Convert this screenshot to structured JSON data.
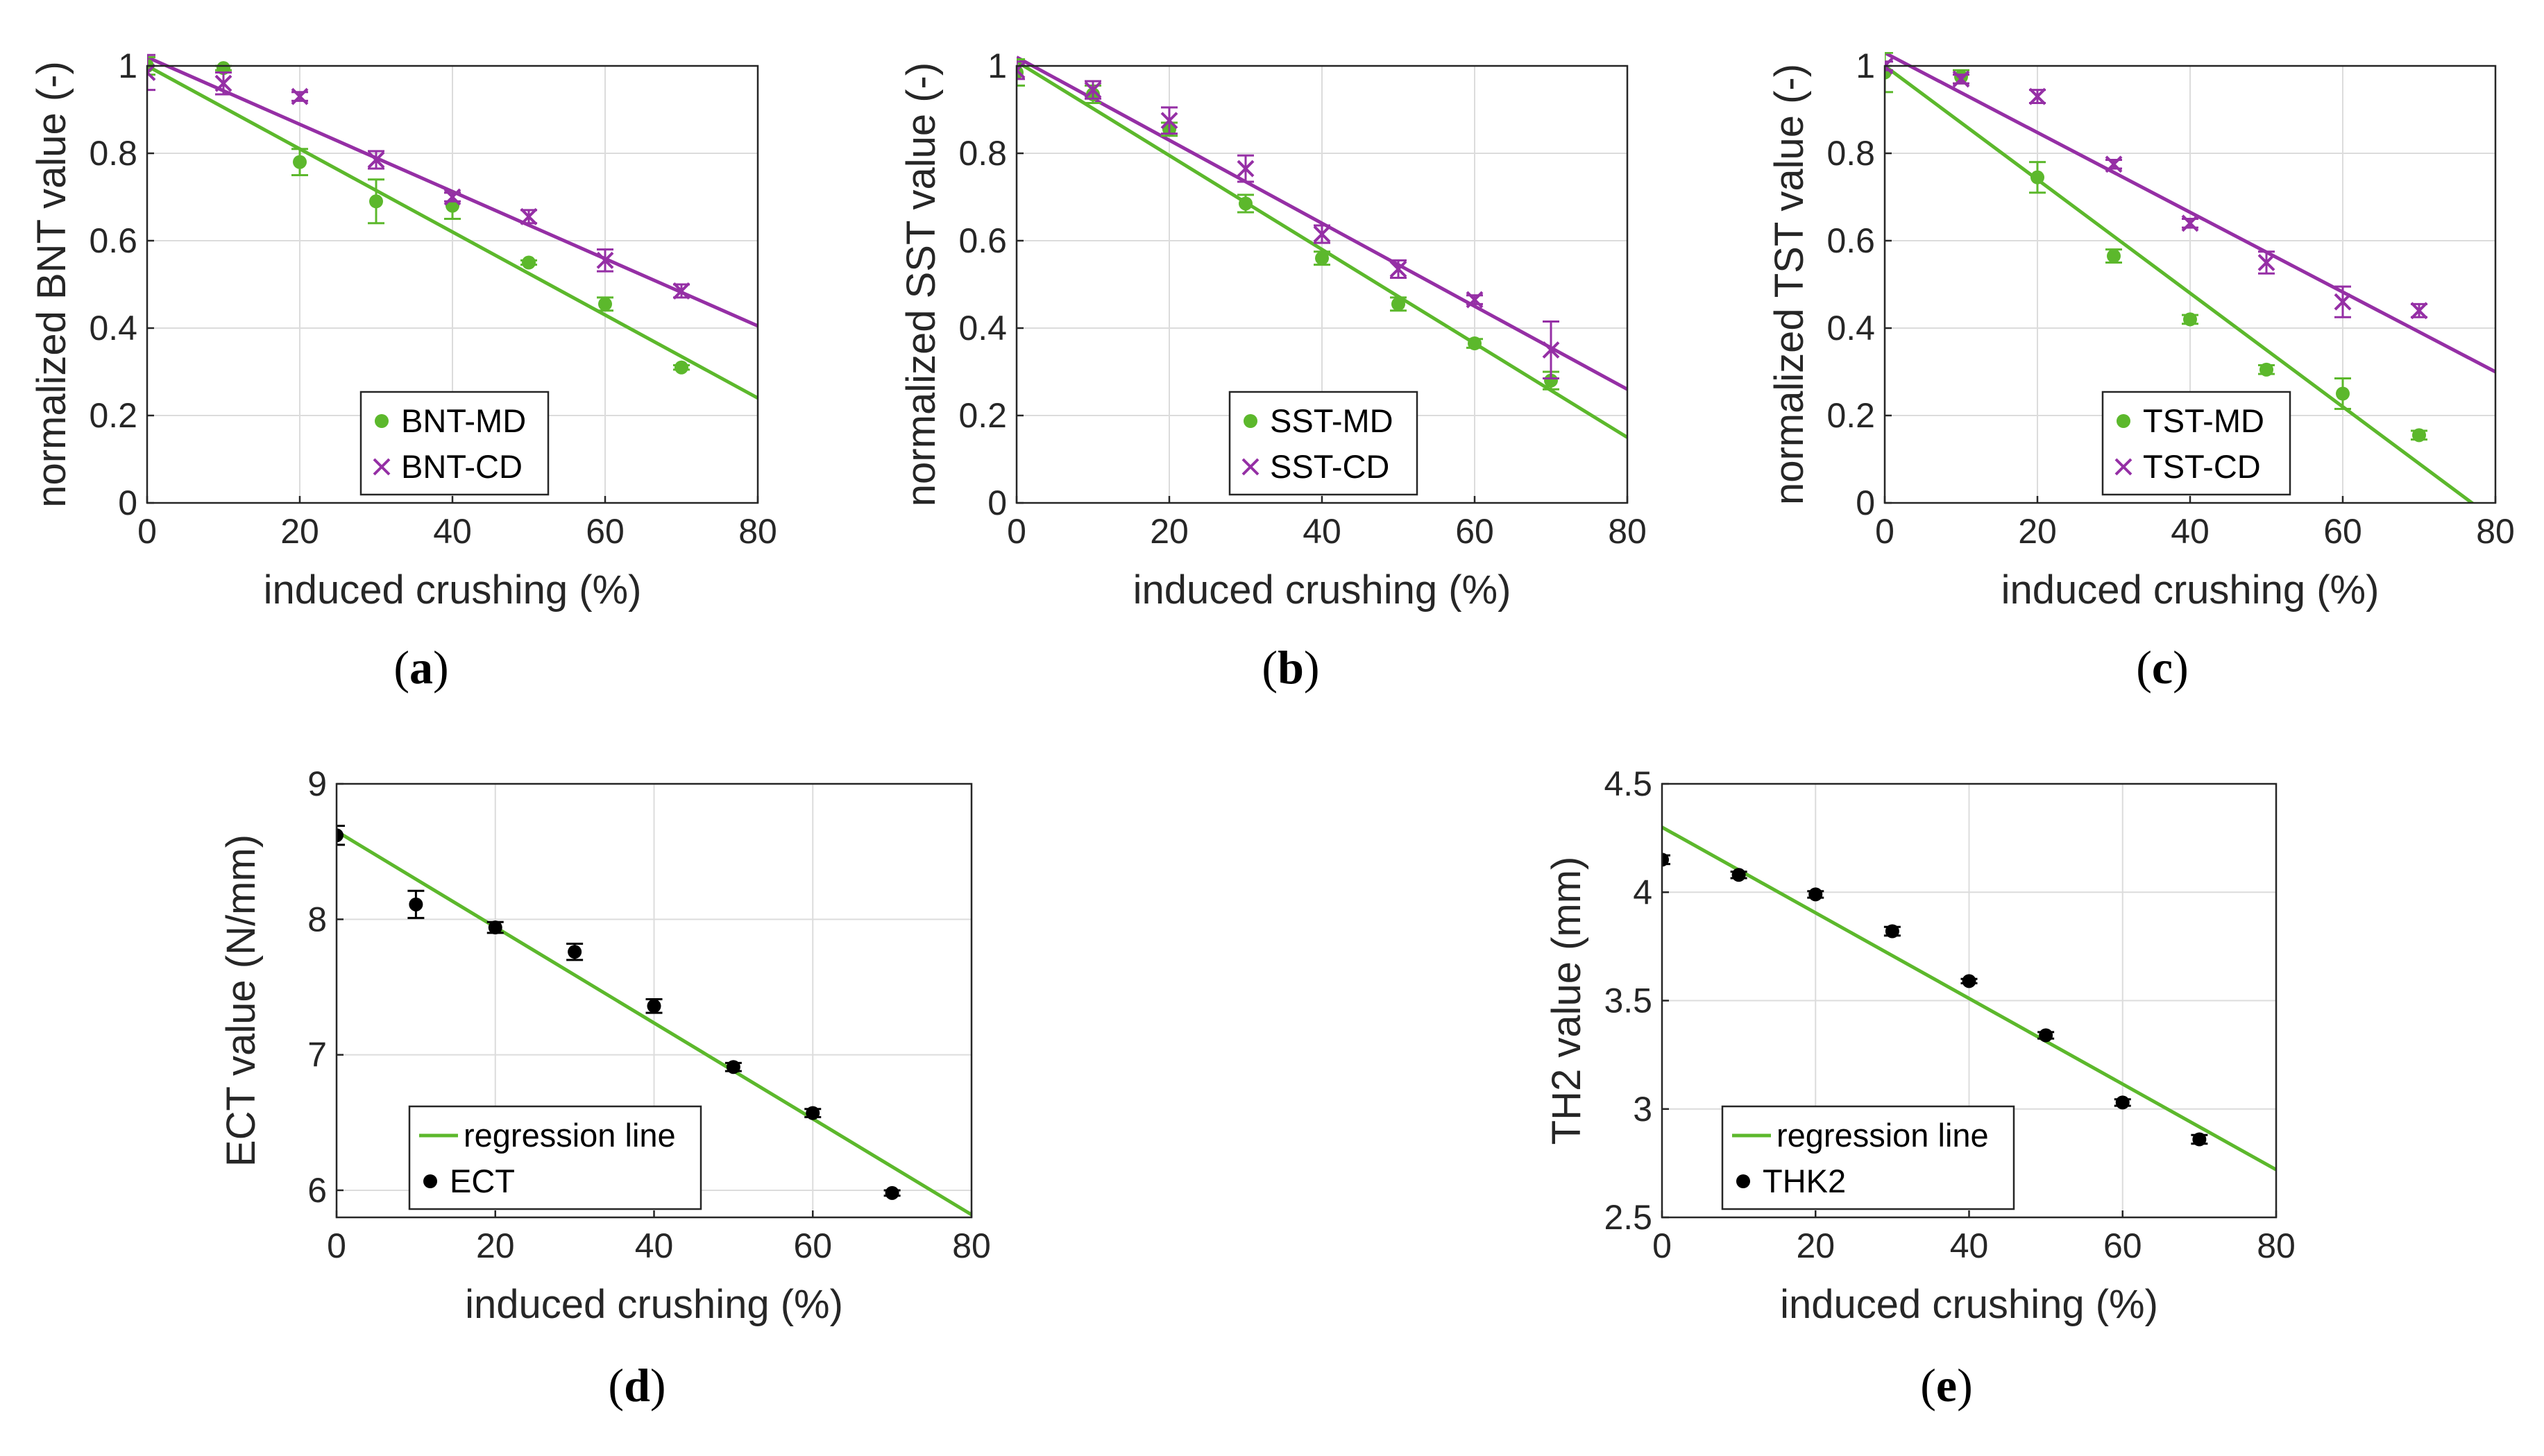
{
  "colors": {
    "md": "#5cb82c",
    "cd": "#952fa5",
    "black": "#000000",
    "regression": "#5cb82c"
  },
  "chart_data": [
    {
      "type": "scatter",
      "id": "a",
      "caption": "a",
      "xlabel": "induced crushing (%)",
      "ylabel": "normalized BNT value (-)",
      "xlim": [
        0,
        80
      ],
      "ylim": [
        0,
        1
      ],
      "xticks": [
        0,
        20,
        40,
        60,
        80
      ],
      "yticks": [
        0,
        0.2,
        0.4,
        0.6,
        0.8,
        1
      ],
      "ytick_labels": [
        "0",
        "0.2",
        "0.4",
        "0.6",
        "0.8",
        "1"
      ],
      "legend": [
        {
          "label": "BNT-MD",
          "marker": "dot",
          "color": "md"
        },
        {
          "label": "BNT-CD",
          "marker": "x",
          "color": "cd"
        }
      ],
      "series": [
        {
          "name": "BNT-MD",
          "marker": "dot",
          "color": "md",
          "x": [
            0,
            10,
            20,
            30,
            40,
            50,
            60,
            70
          ],
          "y": [
            1.0,
            0.995,
            0.78,
            0.69,
            0.68,
            0.55,
            0.455,
            0.31
          ],
          "err": [
            0.02,
            0.005,
            0.03,
            0.05,
            0.03,
            0.005,
            0.015,
            0.005
          ],
          "fit": [
            1.0,
            0.24
          ]
        },
        {
          "name": "BNT-CD",
          "marker": "x",
          "color": "cd",
          "x": [
            0,
            10,
            20,
            30,
            40,
            50,
            60,
            70
          ],
          "y": [
            0.985,
            0.96,
            0.93,
            0.785,
            0.7,
            0.655,
            0.555,
            0.485
          ],
          "err": [
            0.04,
            0.025,
            0.01,
            0.02,
            0.01,
            0.015,
            0.025,
            0.015
          ],
          "fit": [
            1.02,
            0.405
          ]
        }
      ]
    },
    {
      "type": "scatter",
      "id": "b",
      "caption": "b",
      "xlabel": "induced crushing (%)",
      "ylabel": "normalized SST value (-)",
      "xlim": [
        0,
        80
      ],
      "ylim": [
        0,
        1
      ],
      "xticks": [
        0,
        20,
        40,
        60,
        80
      ],
      "yticks": [
        0,
        0.2,
        0.4,
        0.6,
        0.8,
        1
      ],
      "ytick_labels": [
        "0",
        "0.2",
        "0.4",
        "0.6",
        "0.8",
        "1"
      ],
      "legend": [
        {
          "label": "SST-MD",
          "marker": "dot",
          "color": "md"
        },
        {
          "label": "SST-CD",
          "marker": "x",
          "color": "cd"
        }
      ],
      "series": [
        {
          "name": "SST-MD",
          "marker": "dot",
          "color": "md",
          "x": [
            0,
            10,
            20,
            30,
            40,
            50,
            60,
            70
          ],
          "y": [
            0.985,
            0.935,
            0.855,
            0.685,
            0.56,
            0.455,
            0.365,
            0.28
          ],
          "err": [
            0.03,
            0.02,
            0.015,
            0.02,
            0.015,
            0.015,
            0.01,
            0.02
          ],
          "fit": [
            1.01,
            0.15
          ]
        },
        {
          "name": "SST-CD",
          "marker": "x",
          "color": "cd",
          "x": [
            0,
            10,
            20,
            30,
            40,
            50,
            60,
            70
          ],
          "y": [
            0.99,
            0.945,
            0.875,
            0.765,
            0.615,
            0.535,
            0.465,
            0.35
          ],
          "err": [
            0.02,
            0.02,
            0.03,
            0.03,
            0.02,
            0.02,
            0.01,
            0.065
          ],
          "fit": [
            1.02,
            0.26
          ]
        }
      ]
    },
    {
      "type": "scatter",
      "id": "c",
      "caption": "c",
      "xlabel": "induced crushing (%)",
      "ylabel": "normalized TST value (-)",
      "xlim": [
        0,
        80
      ],
      "ylim": [
        0,
        1
      ],
      "xticks": [
        0,
        20,
        40,
        60,
        80
      ],
      "yticks": [
        0,
        0.2,
        0.4,
        0.6,
        0.8,
        1
      ],
      "ytick_labels": [
        "0",
        "0.2",
        "0.4",
        "0.6",
        "0.8",
        "1"
      ],
      "legend": [
        {
          "label": "TST-MD",
          "marker": "dot",
          "color": "md"
        },
        {
          "label": "TST-CD",
          "marker": "x",
          "color": "cd"
        }
      ],
      "series": [
        {
          "name": "TST-MD",
          "marker": "dot",
          "color": "md",
          "x": [
            0,
            10,
            20,
            30,
            40,
            50,
            60,
            70
          ],
          "y": [
            0.985,
            0.975,
            0.745,
            0.565,
            0.42,
            0.305,
            0.25,
            0.155
          ],
          "err": [
            0.045,
            0.015,
            0.035,
            0.015,
            0.01,
            0.01,
            0.035,
            0.01
          ],
          "fit": [
            1.0,
            -0.04
          ]
        },
        {
          "name": "TST-CD",
          "marker": "x",
          "color": "cd",
          "x": [
            0,
            10,
            20,
            30,
            40,
            50,
            60,
            70
          ],
          "y": [
            1.0,
            0.97,
            0.93,
            0.775,
            0.64,
            0.55,
            0.46,
            0.44
          ],
          "err": [
            0.01,
            0.01,
            0.015,
            0.01,
            0.01,
            0.025,
            0.035,
            0.015
          ],
          "fit": [
            1.03,
            0.3
          ]
        }
      ]
    },
    {
      "type": "scatter",
      "id": "d",
      "caption": "d",
      "xlabel": "induced crushing (%)",
      "ylabel": "ECT value (N/mm)",
      "xlim": [
        0,
        80
      ],
      "ylim": [
        5.8,
        9
      ],
      "xticks": [
        0,
        20,
        40,
        60,
        80
      ],
      "yticks": [
        6,
        7,
        8,
        9
      ],
      "ytick_labels": [
        "6",
        "7",
        "8",
        "9"
      ],
      "legend": [
        {
          "label": "regression line",
          "marker": "line",
          "color": "regression"
        },
        {
          "label": "ECT",
          "marker": "dot",
          "color": "black"
        }
      ],
      "series": [
        {
          "name": "ECT",
          "marker": "dot",
          "color": "black",
          "x": [
            0,
            10,
            20,
            30,
            40,
            50,
            60,
            70
          ],
          "y": [
            8.62,
            8.11,
            7.94,
            7.76,
            7.36,
            6.91,
            6.57,
            5.98
          ],
          "err": [
            0.07,
            0.1,
            0.04,
            0.06,
            0.05,
            0.03,
            0.03,
            0.02
          ],
          "fit": [
            8.65,
            5.82
          ]
        }
      ]
    },
    {
      "type": "scatter",
      "id": "e",
      "caption": "e",
      "xlabel": "induced crushing (%)",
      "ylabel": "TH2 value (mm)",
      "xlim": [
        0,
        80
      ],
      "ylim": [
        2.5,
        4.5
      ],
      "xticks": [
        0,
        20,
        40,
        60,
        80
      ],
      "yticks": [
        2.5,
        3,
        3.5,
        4,
        4.5
      ],
      "ytick_labels": [
        "2.5",
        "3",
        "3.5",
        "4",
        "4.5"
      ],
      "legend": [
        {
          "label": "regression line",
          "marker": "line",
          "color": "regression"
        },
        {
          "label": "THK2",
          "marker": "dot",
          "color": "black"
        }
      ],
      "series": [
        {
          "name": "THK2",
          "marker": "dot",
          "color": "black",
          "x": [
            0,
            10,
            20,
            30,
            40,
            50,
            60,
            70
          ],
          "y": [
            4.15,
            4.08,
            3.99,
            3.82,
            3.59,
            3.34,
            3.03,
            2.86
          ],
          "err": [
            0.02,
            0.015,
            0.015,
            0.02,
            0.01,
            0.015,
            0.015,
            0.02
          ],
          "fit": [
            4.3,
            2.72
          ]
        }
      ]
    }
  ]
}
